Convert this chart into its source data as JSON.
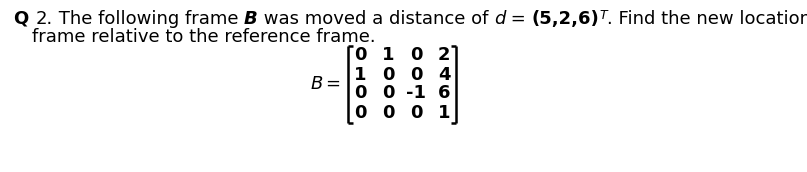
{
  "background_color": "#ffffff",
  "text_color": "#000000",
  "line1_parts": [
    {
      "text": "Q ",
      "bold": true,
      "italic": false,
      "size": 13
    },
    {
      "text": "2.",
      "bold": false,
      "italic": false,
      "size": 13
    },
    {
      "text": " The following frame ",
      "bold": false,
      "italic": false,
      "size": 13
    },
    {
      "text": "B",
      "bold": true,
      "italic": true,
      "size": 13
    },
    {
      "text": " was moved a distance of ",
      "bold": false,
      "italic": false,
      "size": 13
    },
    {
      "text": "d",
      "bold": false,
      "italic": true,
      "size": 13
    },
    {
      "text": " = ",
      "bold": false,
      "italic": false,
      "size": 13
    },
    {
      "text": "(5,2,6)",
      "bold": true,
      "italic": false,
      "size": 13
    },
    {
      "text": "T",
      "bold": false,
      "italic": true,
      "size": 9,
      "superscript": true
    },
    {
      "text": ". Find the new location of the",
      "bold": false,
      "italic": false,
      "size": 13
    }
  ],
  "line2": "frame relative to the reference frame.",
  "matrix_label": "B",
  "matrix_rows": [
    [
      "0",
      "1",
      "0",
      "2"
    ],
    [
      "1",
      "0",
      "0",
      "4"
    ],
    [
      "0",
      "0",
      "-1",
      "6"
    ],
    [
      "0",
      "0",
      "0",
      "1"
    ]
  ],
  "fig_width": 8.07,
  "fig_height": 1.72,
  "dpi": 100
}
